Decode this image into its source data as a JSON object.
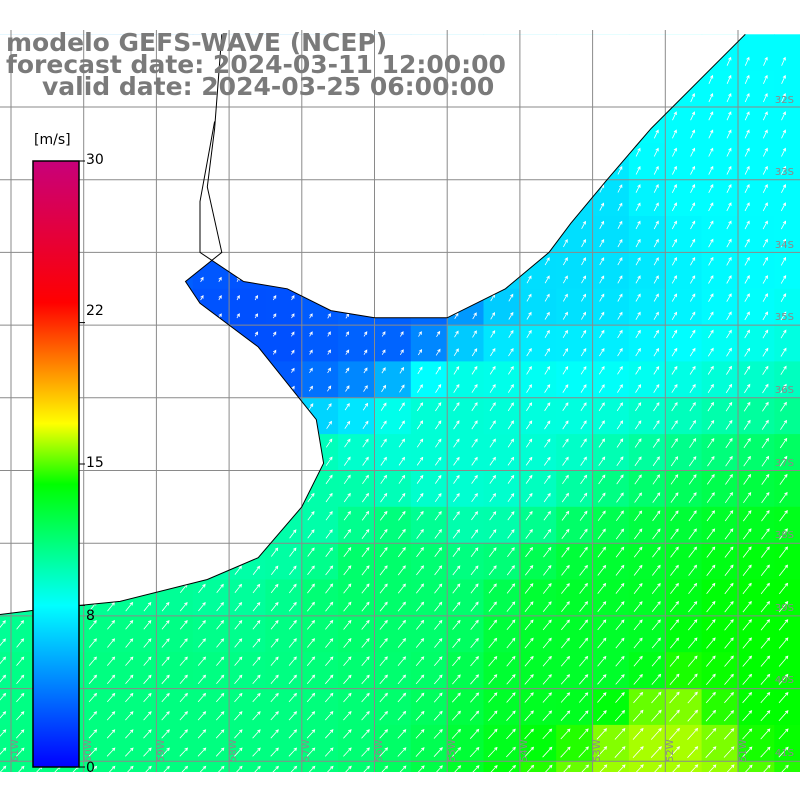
{
  "title": {
    "line1": "modelo GEFS-WAVE (NCEP)",
    "line2": "forecast date: 2024-03-11 12:00:00",
    "line3": "valid date: 2024-03-25 06:00:00"
  },
  "colorbar": {
    "unit": "[m/s]",
    "min": 0,
    "max": 30,
    "tick_labels": [
      "30",
      "22",
      "15",
      "8",
      "0"
    ],
    "tick_values": [
      30,
      22,
      15,
      8,
      0
    ],
    "colors": [
      "#0000ff",
      "#00ffff",
      "#00ff00",
      "#ffff00",
      "#ff0000",
      "#c8007a"
    ],
    "color_stops": [
      0,
      8,
      14,
      17,
      23,
      30
    ]
  },
  "map": {
    "lon_range": [
      -61.25,
      -50.25
    ],
    "lat_range": [
      -41.5,
      -31.25
    ],
    "grid_lon": [
      -61,
      -60,
      -59,
      -58,
      -57,
      -56,
      -55,
      -54,
      -53,
      -52,
      -51
    ],
    "grid_lat": [
      -32,
      -33,
      -34,
      -35,
      -36,
      -37,
      -38,
      -39,
      -40,
      -41
    ],
    "lat_labels": [
      "32S",
      "33S",
      "34S",
      "35S",
      "36S",
      "37S",
      "38S",
      "39S",
      "40S",
      "41S"
    ],
    "lon_labels": [
      "61W",
      "60W",
      "59W",
      "58W",
      "57W",
      "56W",
      "55W",
      "54W",
      "53W",
      "52W",
      "51W"
    ],
    "land_color": "#ffffff",
    "coast_color": "#000000",
    "grid_color": "#8a8a8a",
    "arrow_color": "#ffffff"
  },
  "wind_field": {
    "variable": "wind speed",
    "unit": "m/s",
    "dominant_direction": "from southwest toward northeast",
    "speed_samples": [
      {
        "lon": -57.5,
        "lat": -35.1,
        "speed": 2.5
      },
      {
        "lon": -56.0,
        "lat": -34.8,
        "speed": 3.0
      },
      {
        "lon": -53.5,
        "lat": -33.5,
        "speed": 7.0
      },
      {
        "lon": -51.5,
        "lat": -32.5,
        "speed": 8.0
      },
      {
        "lon": -55.0,
        "lat": -36.5,
        "speed": 9.0
      },
      {
        "lon": -57.0,
        "lat": -37.5,
        "speed": 10.0
      },
      {
        "lon": -56.0,
        "lat": -38.5,
        "speed": 11.5
      },
      {
        "lon": -53.0,
        "lat": -39.5,
        "speed": 13.0
      },
      {
        "lon": -59.0,
        "lat": -40.5,
        "speed": 11.0
      },
      {
        "lon": -52.0,
        "lat": -41.0,
        "speed": 16.0
      },
      {
        "lon": -50.5,
        "lat": -40.0,
        "speed": 14.0
      }
    ]
  }
}
